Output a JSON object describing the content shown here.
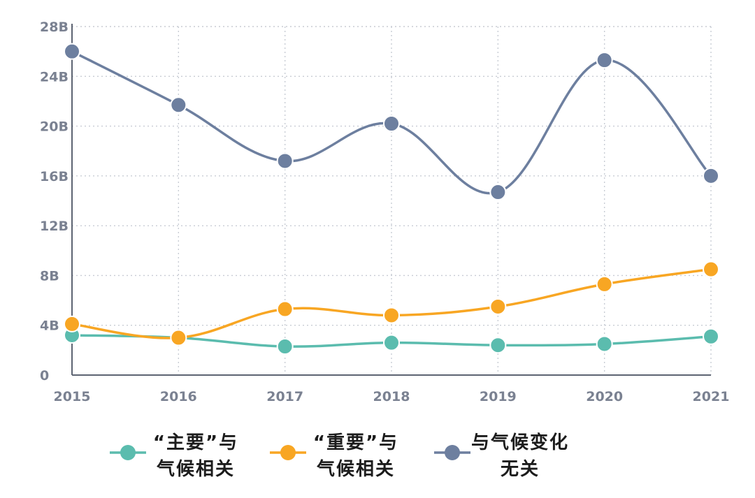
{
  "chart_data": {
    "type": "line",
    "title": "",
    "xlabel": "",
    "ylabel": "",
    "x": [
      "2015",
      "2016",
      "2017",
      "2018",
      "2019",
      "2020",
      "2021"
    ],
    "ylim": [
      0,
      28
    ],
    "yticks": [
      0,
      4,
      8,
      12,
      16,
      20,
      24,
      28
    ],
    "ytick_labels": [
      "0",
      "4B",
      "8B",
      "12B",
      "16B",
      "20B",
      "24B",
      "28B"
    ],
    "grid": "dotted",
    "legend_position": "bottom",
    "series": [
      {
        "name": "“主要”与气候相关",
        "name_lines": [
          "“主要”与",
          "气候相关"
        ],
        "color": "#5bbcae",
        "values": [
          3.2,
          3.0,
          2.3,
          2.6,
          2.4,
          2.5,
          3.1
        ]
      },
      {
        "name": "“重要”与气候相关",
        "name_lines": [
          "“重要”与",
          "气候相关"
        ],
        "color": "#f8a623",
        "values": [
          4.1,
          3.0,
          5.3,
          4.8,
          5.5,
          7.3,
          8.5
        ]
      },
      {
        "name": "与气候变化无关",
        "name_lines": [
          "与气候变化",
          "无关"
        ],
        "color": "#6d7f9f",
        "values": [
          26.0,
          21.7,
          17.2,
          20.2,
          14.7,
          25.3,
          16.0
        ]
      }
    ]
  }
}
